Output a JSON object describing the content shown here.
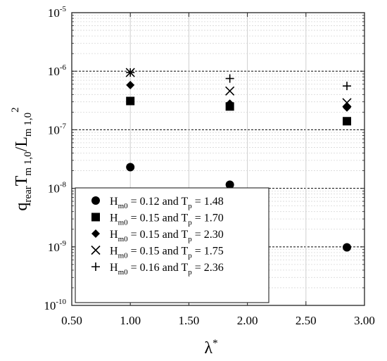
{
  "chart_data": {
    "type": "scatter",
    "title": "",
    "xlabel": "λ*",
    "ylabel": "q_rear T_m1,0 / L_m1,0^2",
    "x_scale": "linear",
    "y_scale": "log",
    "xlim": [
      0.5,
      3.0
    ],
    "ylim": [
      1e-10,
      1e-05
    ],
    "x_ticks": [
      {
        "value": 0.5,
        "label": "0.50"
      },
      {
        "value": 1.0,
        "label": "1.00"
      },
      {
        "value": 1.5,
        "label": "1.50"
      },
      {
        "value": 2.0,
        "label": "2.00"
      },
      {
        "value": 2.5,
        "label": "2.50"
      },
      {
        "value": 3.0,
        "label": "3.00"
      }
    ],
    "y_ticks": [
      {
        "exp": -10,
        "base": "10",
        "sup": "-10"
      },
      {
        "exp": -9,
        "base": "10",
        "sup": "-9"
      },
      {
        "exp": -8,
        "base": "10",
        "sup": "-8"
      },
      {
        "exp": -7,
        "base": "10",
        "sup": "-7"
      },
      {
        "exp": -6,
        "base": "10",
        "sup": "-6"
      },
      {
        "exp": -5,
        "base": "10",
        "sup": "-5"
      }
    ],
    "grid": true,
    "legend_position": "lower-left",
    "series": [
      {
        "name": "Hm0 = 0.12 and Tp = 1.48",
        "marker": "circle",
        "label": {
          "p1": "H",
          "s1": "m0",
          "p2": " = 0.12 and T",
          "s2": "p",
          "p3": " = 1.48"
        },
        "x": [
          1.0,
          1.85,
          2.85
        ],
        "y": [
          2.3e-08,
          1.15e-08,
          9.8e-10
        ]
      },
      {
        "name": "Hm0 = 0.15 and Tp = 1.70",
        "marker": "square",
        "label": {
          "p1": "H",
          "s1": "m0",
          "p2": " = 0.15 and T",
          "s2": "p",
          "p3": " = 1.70"
        },
        "x": [
          1.0,
          1.85,
          2.85
        ],
        "y": [
          3.1e-07,
          2.5e-07,
          1.4e-07
        ]
      },
      {
        "name": "Hm0 = 0.15 and Tp = 2.30",
        "marker": "diamond",
        "label": {
          "p1": "H",
          "s1": "m0",
          "p2": " = 0.15 and T",
          "s2": "p",
          "p3": " = 2.30"
        },
        "x": [
          1.0,
          1.85,
          2.85
        ],
        "y": [
          5.8e-07,
          2.8e-07,
          2.4e-07
        ]
      },
      {
        "name": "Hm0 = 0.15 and Tp = 1.75",
        "marker": "x",
        "label": {
          "p1": "H",
          "s1": "m0",
          "p2": " = 0.15 and T",
          "s2": "p",
          "p3": " = 1.75"
        },
        "x": [
          1.0,
          1.85,
          2.85
        ],
        "y": [
          9.5e-07,
          4.6e-07,
          2.9e-07
        ]
      },
      {
        "name": "Hm0 = 0.16 and Tp = 2.36",
        "marker": "plus",
        "label": {
          "p1": "H",
          "s1": "m0",
          "p2": " = 0.16 and T",
          "s2": "p",
          "p3": " = 2.36"
        },
        "x": [
          1.0,
          1.85,
          2.85
        ],
        "y": [
          9.5e-07,
          7.5e-07,
          5.6e-07
        ]
      }
    ]
  }
}
